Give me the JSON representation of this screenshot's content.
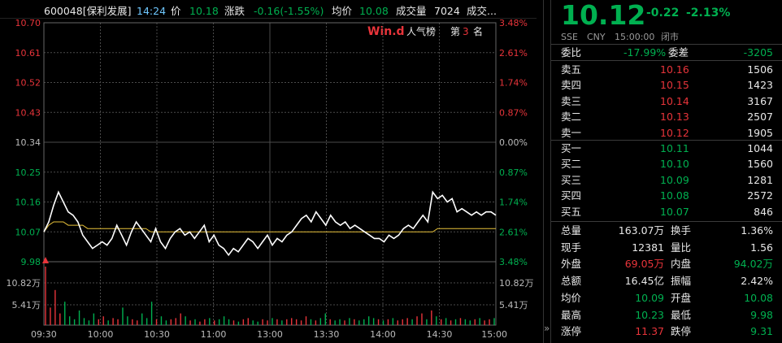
{
  "header": {
    "code_name": "600048[保利发展]",
    "time": "14:24",
    "price_label": "价",
    "price": "10.18",
    "change_label": "涨跌",
    "change": "-0.16(-1.55%)",
    "avg_label": "均价",
    "avg": "10.08",
    "volume_label": "成交量",
    "volume": "7024",
    "amount_label": "成交..."
  },
  "wind_badge": {
    "logo": "Win.d",
    "popularity_label": "人气榜",
    "rank_prefix": "第",
    "rank": "3",
    "rank_suffix": "名"
  },
  "chart_data": {
    "type": "line",
    "title": "",
    "y_left_ticks": [
      "10.70",
      "10.61",
      "10.52",
      "10.43",
      "10.34",
      "10.25",
      "10.16",
      "10.07",
      "9.98"
    ],
    "y_right_ticks": [
      "3.48%",
      "2.61%",
      "1.74%",
      "0.87%",
      "0.00%",
      "0.87%",
      "1.74%",
      "2.61%",
      "3.48%"
    ],
    "prev_close": 10.34,
    "ylim": [
      9.98,
      10.7
    ],
    "volume_ticks": [
      "10.82万",
      "5.41万"
    ],
    "volume_ticks_right": [
      "10.82万",
      "5.41万"
    ],
    "x_ticks": [
      "09:30",
      "10:00",
      "10:30",
      "11:00",
      "13:00",
      "13:30",
      "14:00",
      "14:30",
      "15:00"
    ],
    "series": [
      {
        "values": [
          10.07,
          10.1,
          10.15,
          10.19,
          10.16,
          10.13,
          10.12,
          10.1,
          10.06,
          10.04,
          10.02,
          10.03,
          10.04,
          10.03,
          10.05,
          10.09,
          10.06,
          10.03,
          10.07,
          10.1,
          10.08,
          10.06,
          10.04,
          10.08,
          10.04,
          10.02,
          10.05,
          10.07,
          10.08,
          10.06,
          10.07,
          10.05,
          10.07,
          10.09,
          10.04,
          10.06,
          10.03,
          10.02,
          10.0,
          10.02,
          10.01,
          10.03,
          10.05,
          10.04,
          10.02,
          10.04,
          10.06,
          10.03,
          10.05,
          10.04,
          10.06,
          10.07,
          10.09,
          10.11,
          10.12,
          10.1,
          10.13,
          10.11,
          10.09,
          10.12,
          10.1,
          10.09,
          10.1,
          10.08,
          10.09,
          10.08,
          10.07,
          10.06,
          10.05,
          10.05,
          10.04,
          10.06,
          10.05,
          10.06,
          10.08,
          10.09,
          10.08,
          10.1,
          10.12,
          10.1,
          10.19,
          10.17,
          10.18,
          10.16,
          10.17,
          10.13,
          10.14,
          10.13,
          10.12,
          10.13,
          10.12,
          10.13,
          10.13,
          10.12
        ]
      },
      {
        "values": [
          10.07,
          10.09,
          10.1,
          10.1,
          10.1,
          10.09,
          10.09,
          10.09,
          10.09,
          10.08,
          10.08,
          10.08,
          10.08,
          10.08,
          10.08,
          10.08,
          10.08,
          10.08,
          10.08,
          10.08,
          10.08,
          10.08,
          10.07,
          10.07,
          10.07,
          10.07,
          10.07,
          10.07,
          10.07,
          10.07,
          10.07,
          10.07,
          10.07,
          10.07,
          10.07,
          10.07,
          10.07,
          10.07,
          10.07,
          10.07,
          10.07,
          10.07,
          10.07,
          10.07,
          10.07,
          10.07,
          10.07,
          10.07,
          10.07,
          10.07,
          10.07,
          10.07,
          10.07,
          10.07,
          10.07,
          10.07,
          10.07,
          10.07,
          10.07,
          10.07,
          10.07,
          10.07,
          10.07,
          10.07,
          10.07,
          10.07,
          10.07,
          10.07,
          10.07,
          10.07,
          10.07,
          10.07,
          10.07,
          10.07,
          10.07,
          10.07,
          10.07,
          10.07,
          10.07,
          10.07,
          10.07,
          10.08,
          10.08,
          10.08,
          10.08,
          10.08,
          10.08,
          10.08,
          10.08,
          10.08,
          10.08,
          10.08,
          10.08,
          10.08
        ]
      }
    ],
    "volume": {
      "values": [
        100,
        30,
        60,
        20,
        40,
        15,
        10,
        25,
        12,
        8,
        20,
        10,
        15,
        8,
        12,
        10,
        30,
        15,
        10,
        8,
        20,
        12,
        40,
        10,
        15,
        8,
        10,
        12,
        20,
        15,
        8,
        10,
        6,
        10,
        12,
        8,
        10,
        15,
        10,
        8,
        6,
        10,
        12,
        8,
        6,
        10,
        8,
        12,
        10,
        8,
        10,
        12,
        10,
        8,
        15,
        10,
        8,
        12,
        20,
        10,
        8,
        10,
        8,
        12,
        10,
        8,
        10,
        15,
        12,
        10,
        8,
        10,
        12,
        8,
        10,
        12,
        10,
        15,
        20,
        10,
        25,
        15,
        10,
        12,
        8,
        10,
        12,
        10,
        8,
        10,
        12,
        8,
        10,
        12
      ]
    }
  },
  "quote": {
    "price": "10.12",
    "change": "-0.22",
    "change_pct": "-2.13%",
    "exchange": "SSE",
    "currency": "CNY",
    "time": "15:00:00",
    "status": "闭市"
  },
  "orderbook": {
    "ratio_label": "委比",
    "ratio": "-17.99%",
    "diff_label": "委差",
    "diff": "-3205",
    "asks": [
      {
        "label": "卖五",
        "price": "10.16",
        "vol": "1506",
        "color": "red"
      },
      {
        "label": "卖四",
        "price": "10.15",
        "vol": "1423",
        "color": "red"
      },
      {
        "label": "卖三",
        "price": "10.14",
        "vol": "3167",
        "color": "red"
      },
      {
        "label": "卖二",
        "price": "10.13",
        "vol": "2507",
        "color": "red"
      },
      {
        "label": "卖一",
        "price": "10.12",
        "vol": "1905",
        "color": "red"
      }
    ],
    "bids": [
      {
        "label": "买一",
        "price": "10.11",
        "vol": "1044",
        "color": "green"
      },
      {
        "label": "买二",
        "price": "10.10",
        "vol": "1560",
        "color": "green"
      },
      {
        "label": "买三",
        "price": "10.09",
        "vol": "1281",
        "color": "green"
      },
      {
        "label": "买四",
        "price": "10.08",
        "vol": "2572",
        "color": "green"
      },
      {
        "label": "买五",
        "price": "10.07",
        "vol": "846",
        "color": "green"
      }
    ]
  },
  "stats": [
    {
      "l1": "总量",
      "v1": "163.07万",
      "c1": "white",
      "l2": "换手",
      "v2": "1.36%",
      "c2": "white"
    },
    {
      "l1": "现手",
      "v1": "12381",
      "c1": "white",
      "l2": "量比",
      "v2": "1.56",
      "c2": "white"
    },
    {
      "l1": "外盘",
      "v1": "69.05万",
      "c1": "red",
      "l2": "内盘",
      "v2": "94.02万",
      "c2": "green"
    },
    {
      "l1": "总额",
      "v1": "16.45亿",
      "c1": "white",
      "l2": "振幅",
      "v2": "2.42%",
      "c2": "white"
    },
    {
      "l1": "均价",
      "v1": "10.09",
      "c1": "green",
      "l2": "开盘",
      "v2": "10.08",
      "c2": "green"
    },
    {
      "l1": "最高",
      "v1": "10.23",
      "c1": "green",
      "l2": "最低",
      "v2": "9.98",
      "c2": "green"
    },
    {
      "l1": "涨停",
      "v1": "11.37",
      "c1": "red",
      "l2": "跌停",
      "v2": "9.31",
      "c2": "green"
    }
  ],
  "side_arrow": "»",
  "colors": {
    "up": "#e8343a",
    "down": "#00b050",
    "price_line": "#ffffff",
    "avg_line": "#e8c23a",
    "grid": "#4a4a4a"
  }
}
